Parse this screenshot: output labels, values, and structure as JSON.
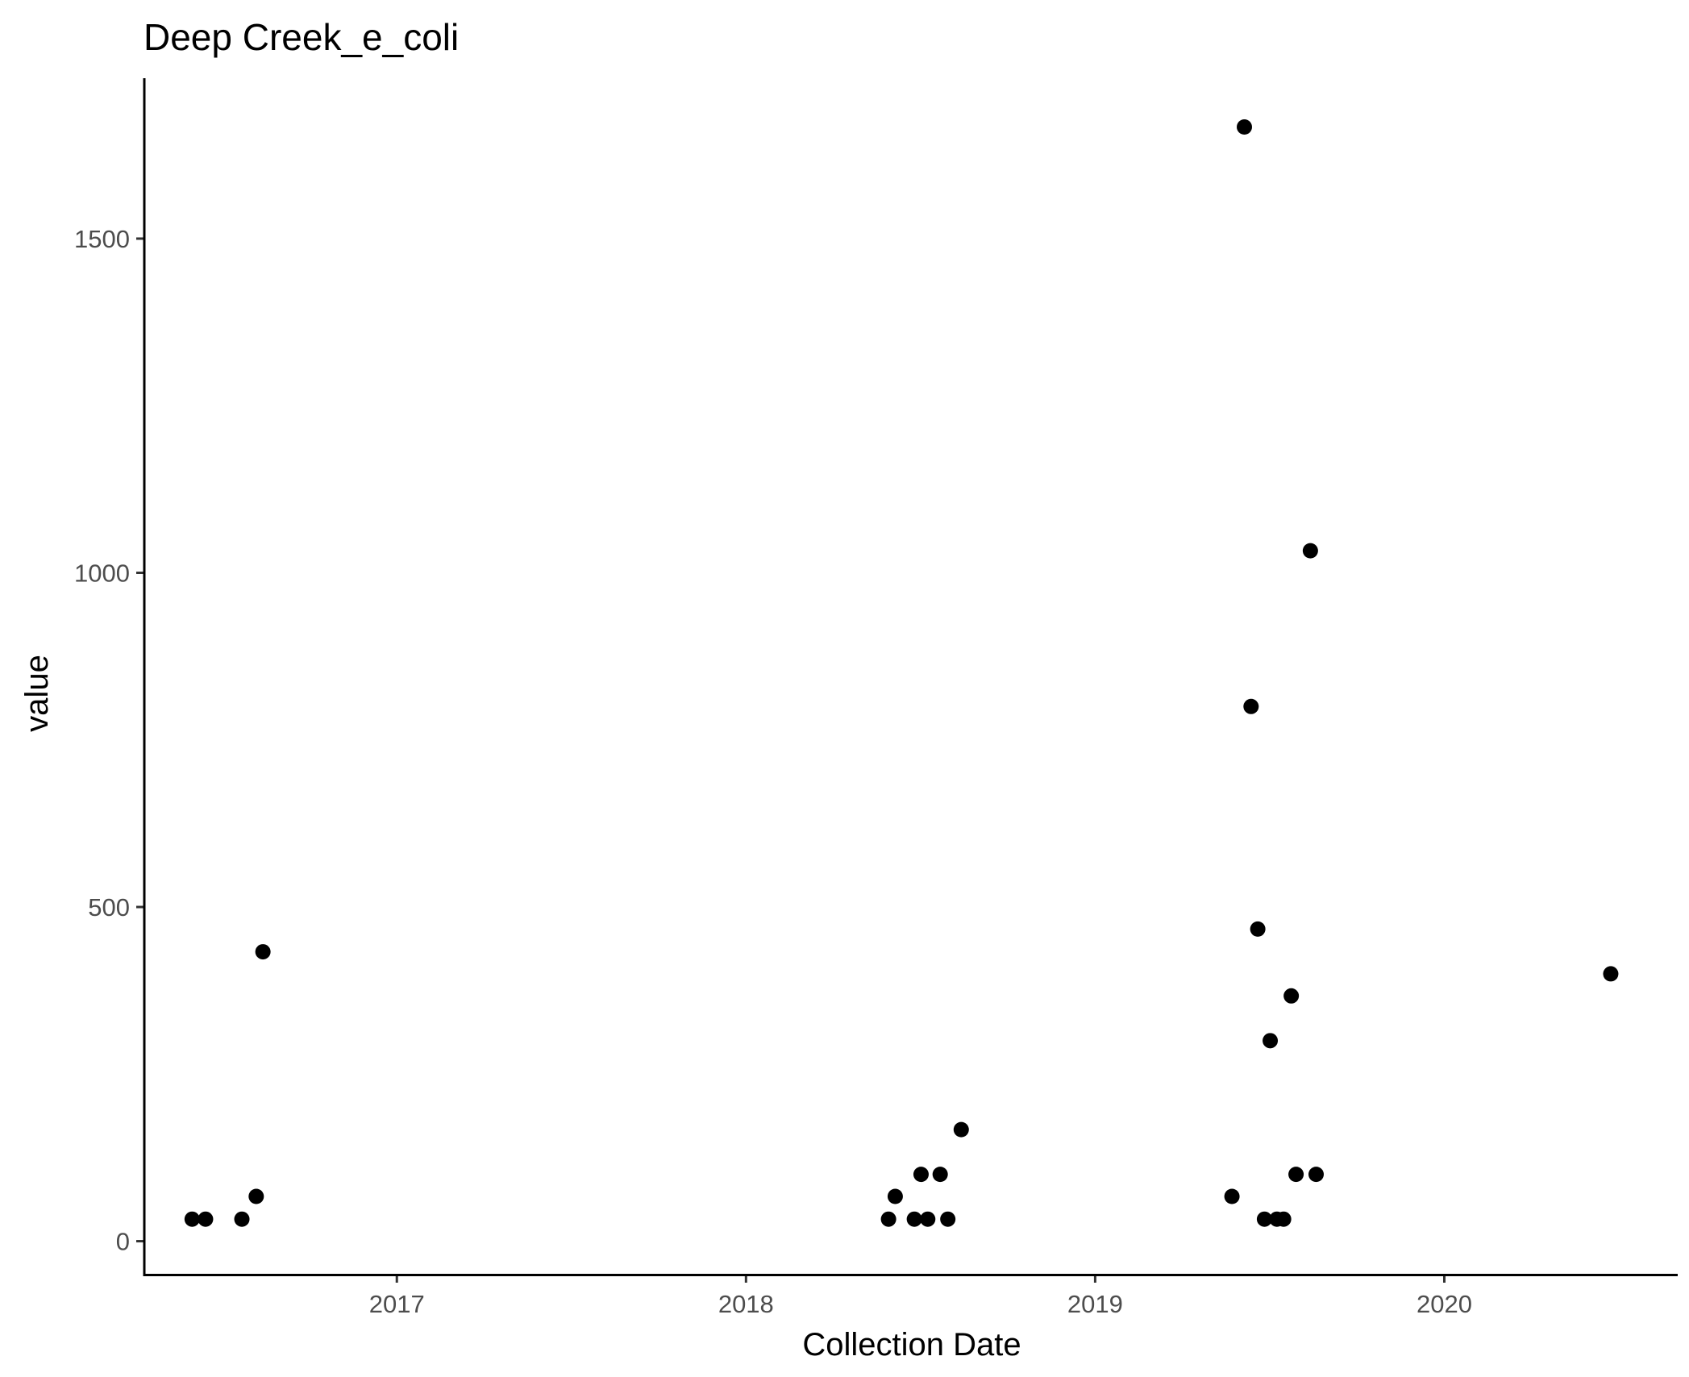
{
  "chart_data": {
    "type": "scatter",
    "title": "Deep Creek_e_coli",
    "xlabel": "Collection Date",
    "ylabel": "value",
    "x_axis_type": "date",
    "xlim": [
      "2016-04-12",
      "2020-09-01"
    ],
    "ylim": [
      -50,
      1740
    ],
    "x_ticks": [
      "2017-01-01",
      "2018-01-01",
      "2019-01-01",
      "2020-01-01"
    ],
    "x_tick_labels": [
      "2017",
      "2018",
      "2019",
      "2020"
    ],
    "y_ticks": [
      0,
      500,
      1000,
      1500
    ],
    "y_tick_labels": [
      "0",
      "500",
      "1000",
      "1500"
    ],
    "grid": false,
    "legend": "none",
    "point_color": "#000000",
    "points": [
      {
        "x": "2016-06-01",
        "y": 33
      },
      {
        "x": "2016-06-15",
        "y": 33
      },
      {
        "x": "2016-07-23",
        "y": 33
      },
      {
        "x": "2016-08-07",
        "y": 67
      },
      {
        "x": "2016-08-14",
        "y": 433
      },
      {
        "x": "2018-05-30",
        "y": 33
      },
      {
        "x": "2018-06-06",
        "y": 67
      },
      {
        "x": "2018-06-26",
        "y": 33
      },
      {
        "x": "2018-07-03",
        "y": 100
      },
      {
        "x": "2018-07-10",
        "y": 33
      },
      {
        "x": "2018-07-23",
        "y": 100
      },
      {
        "x": "2018-07-31",
        "y": 33
      },
      {
        "x": "2018-08-14",
        "y": 167
      },
      {
        "x": "2019-05-24",
        "y": 67
      },
      {
        "x": "2019-06-06",
        "y": 1667
      },
      {
        "x": "2019-06-13",
        "y": 800
      },
      {
        "x": "2019-06-20",
        "y": 467
      },
      {
        "x": "2019-06-27",
        "y": 33
      },
      {
        "x": "2019-07-03",
        "y": 300
      },
      {
        "x": "2019-07-10",
        "y": 33
      },
      {
        "x": "2019-07-17",
        "y": 33
      },
      {
        "x": "2019-07-25",
        "y": 367
      },
      {
        "x": "2019-07-30",
        "y": 100
      },
      {
        "x": "2019-08-14",
        "y": 1033
      },
      {
        "x": "2019-08-20",
        "y": 100
      },
      {
        "x": "2020-06-23",
        "y": 400
      }
    ]
  }
}
